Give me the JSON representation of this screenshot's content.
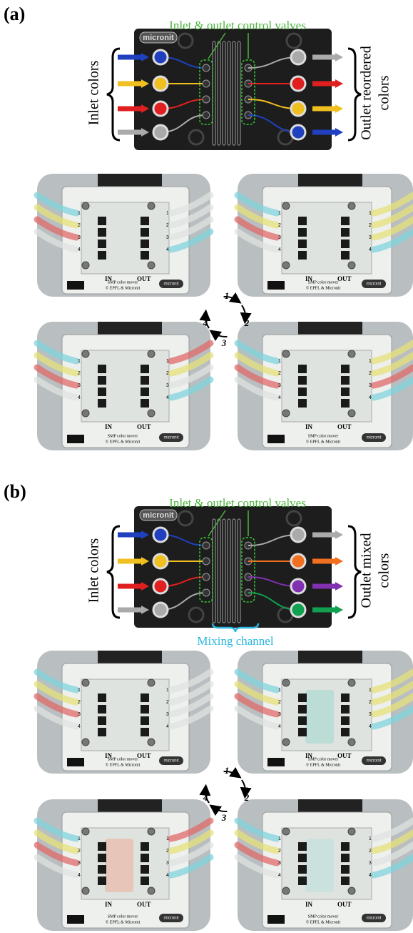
{
  "panels": [
    {
      "label": "(a)",
      "valves_label": "Inlet & outlet control valves",
      "inlet_label": "Inlet colors",
      "outlet_label": [
        "Outlet reordered",
        "colors"
      ],
      "device_brand": "micronit",
      "steps": [
        "1",
        "2",
        "3",
        "4"
      ]
    },
    {
      "label": "(b)",
      "valves_label": "Inlet & outlet control valves",
      "inlet_label": "Inlet colors",
      "outlet_label": [
        "Outlet mixed",
        "colors"
      ],
      "device_brand": "micronit",
      "channel_label": "Mixing channel",
      "steps": [
        "1",
        "2",
        "3",
        "4"
      ]
    }
  ],
  "photo": {
    "port_numbers": [
      "1",
      "2",
      "3",
      "4"
    ],
    "inlet": "IN",
    "outlet": "OUT",
    "product": "SMP color mover",
    "credit": "© EPFL & Micronit",
    "brand": "micronit"
  }
}
